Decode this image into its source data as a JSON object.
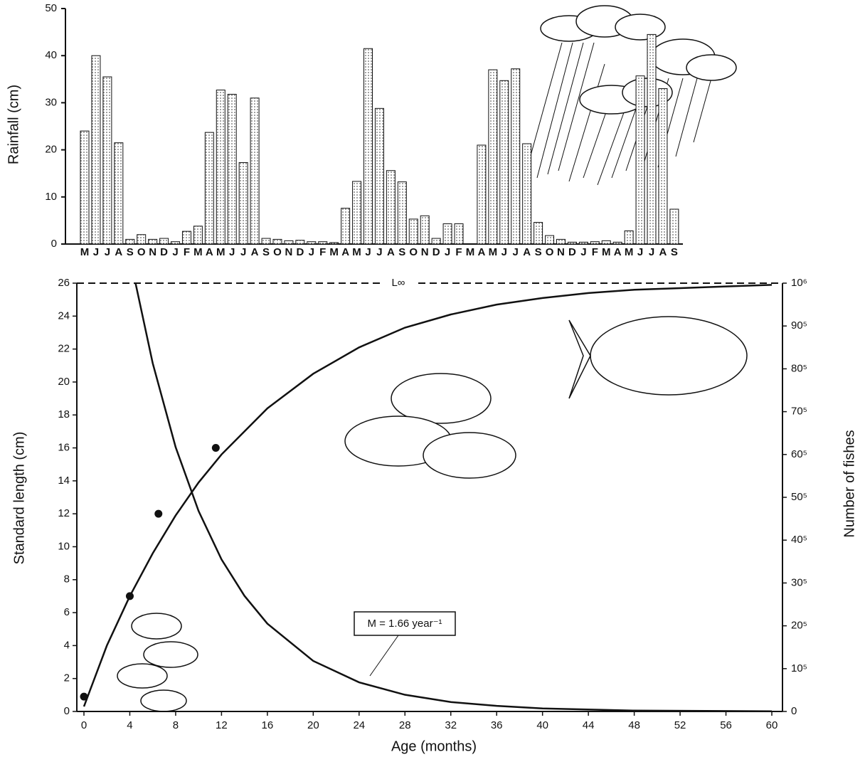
{
  "chart_data": [
    {
      "type": "bar",
      "y_label": "Rainfall (cm)",
      "categories": [
        "M",
        "J",
        "J",
        "A",
        "S",
        "O",
        "N",
        "D",
        "J",
        "F",
        "M",
        "A",
        "M",
        "J",
        "J",
        "A",
        "S",
        "O",
        "N",
        "D",
        "J",
        "F",
        "M",
        "A",
        "M",
        "J",
        "J",
        "A",
        "S",
        "O",
        "N",
        "D",
        "J",
        "F",
        "M",
        "A",
        "M",
        "J",
        "J",
        "A",
        "S",
        "O",
        "N",
        "D",
        "J",
        "F",
        "M",
        "A",
        "M",
        "J",
        "J",
        "A",
        "S"
      ],
      "values": [
        24,
        40,
        35.5,
        21.5,
        1,
        2,
        1,
        1.2,
        0.5,
        2.7,
        3.8,
        23.7,
        32.7,
        31.8,
        17.3,
        31,
        1.2,
        1,
        0.7,
        0.8,
        0.5,
        0.5,
        0.3,
        7.6,
        13.3,
        41.5,
        28.8,
        15.6,
        13.2,
        5.3,
        6,
        1.2,
        4.3,
        4.3,
        0,
        21,
        37,
        34.7,
        37.2,
        21.3,
        4.6,
        1.8,
        1,
        0.4,
        0.4,
        0.5,
        0.7,
        0.4,
        2.8,
        35.7,
        44.5,
        33,
        7.4
      ],
      "ylim": [
        0,
        50
      ],
      "yticks": [
        0,
        10,
        20,
        30,
        40,
        50
      ]
    },
    {
      "type": "line",
      "x_label": "Age (months)",
      "y_label": "Standard length (cm)",
      "y2_label": "Number of fishes",
      "xlim": [
        0,
        60
      ],
      "xticks": [
        0,
        4,
        8,
        12,
        16,
        20,
        24,
        28,
        32,
        36,
        40,
        44,
        48,
        52,
        56,
        60
      ],
      "ylim": [
        0,
        26
      ],
      "yticks": [
        0,
        2,
        4,
        6,
        8,
        10,
        12,
        14,
        16,
        18,
        20,
        22,
        24,
        26
      ],
      "y2lim": [
        0,
        1000000
      ],
      "y2ticks": [
        {
          "value": 0,
          "label": "0"
        },
        {
          "value": 100000,
          "label": "10⁵"
        },
        {
          "value": 200000,
          "label": "20⁵"
        },
        {
          "value": 300000,
          "label": "30⁵"
        },
        {
          "value": 400000,
          "label": "40⁵"
        },
        {
          "value": 500000,
          "label": "50⁵"
        },
        {
          "value": 600000,
          "label": "60⁵"
        },
        {
          "value": 700000,
          "label": "70⁵"
        },
        {
          "value": 800000,
          "label": "80⁵"
        },
        {
          "value": 900000,
          "label": "90⁵"
        },
        {
          "value": 1000000,
          "label": "10⁶"
        }
      ],
      "series": [
        {
          "x": [
            0,
            2,
            4,
            6,
            8,
            10,
            12,
            16,
            20,
            24,
            28,
            32,
            36,
            40,
            44,
            48,
            52,
            56,
            60
          ],
          "values": [
            0.3,
            4,
            7,
            9.6,
            11.9,
            13.9,
            15.6,
            18.4,
            20.5,
            22.1,
            23.3,
            24.1,
            24.7,
            25.1,
            25.4,
            25.6,
            25.7,
            25.8,
            25.9
          ]
        },
        {
          "axis": "y2",
          "x": [
            4.5,
            6,
            8,
            10,
            12,
            14,
            16,
            20,
            24,
            28,
            32,
            36,
            40,
            48,
            60
          ],
          "values": [
            1000000,
            813000,
            617000,
            468000,
            355000,
            270000,
            205000,
            118000,
            68000,
            39000,
            22000,
            13000,
            7000,
            2000,
            500
          ]
        },
        {
          "type": "scatter",
          "x": [
            0,
            4,
            6.5,
            11.5
          ],
          "values": [
            0.9,
            7,
            12,
            16
          ]
        }
      ],
      "asymptote": {
        "label": "L∞",
        "value": 26
      },
      "annotation": "M = 1.66 year⁻¹"
    }
  ]
}
